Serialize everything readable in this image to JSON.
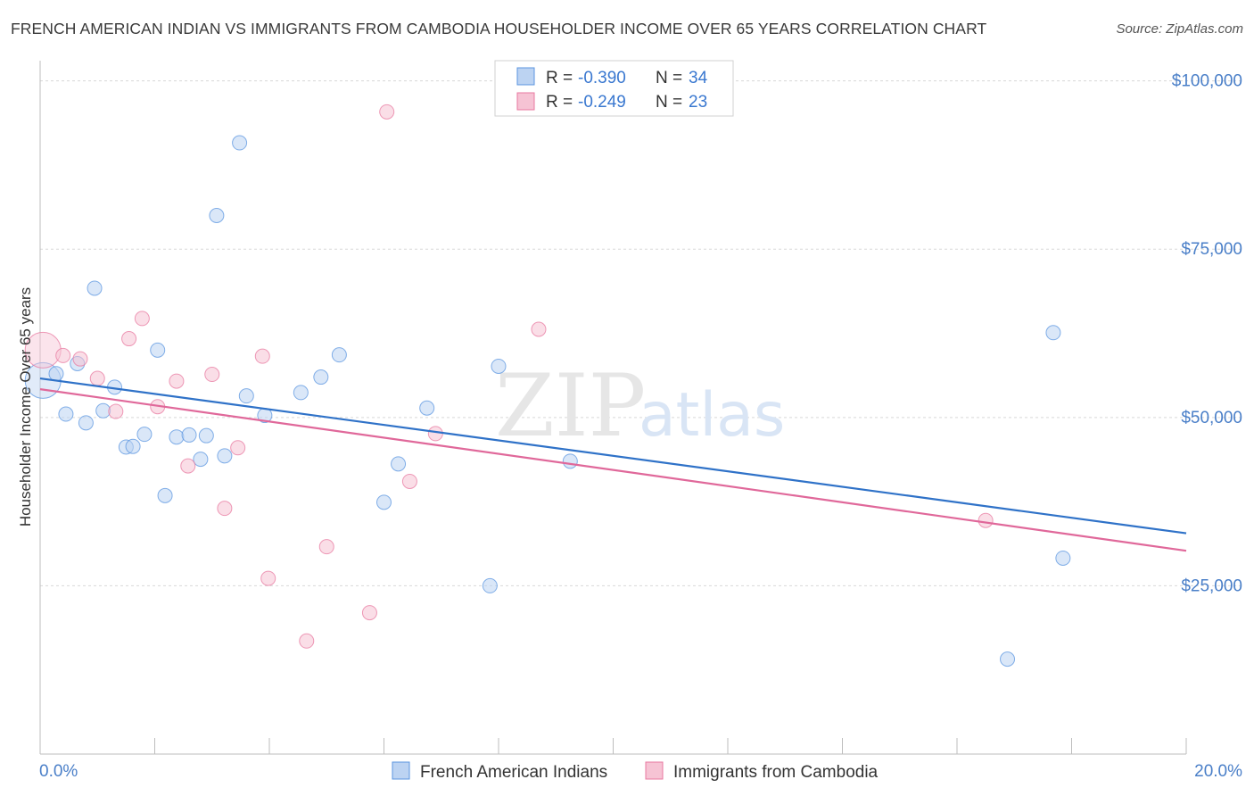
{
  "chart_data": {
    "type": "scatter",
    "title": "FRENCH AMERICAN INDIAN VS IMMIGRANTS FROM CAMBODIA HOUSEHOLDER INCOME OVER 65 YEARS CORRELATION CHART",
    "source": "Source: ZipAtlas.com",
    "ylabel": "Householder Income Over 65 years",
    "xlabel": "",
    "xlim": [
      0,
      20
    ],
    "ylim": [
      0,
      103000
    ],
    "x_tick_labels": [
      "0.0%",
      "20.0%"
    ],
    "y_ticks": [
      25000,
      50000,
      75000,
      100000
    ],
    "y_tick_labels": [
      "$25,000",
      "$50,000",
      "$75,000",
      "$100,000"
    ],
    "watermark": {
      "zip": "ZIP",
      "atlas": "atlas"
    },
    "legend": {
      "r_label": "R =",
      "n_label": "N =",
      "entries": [
        {
          "r": "-0.390",
          "n": "34",
          "color": "#5b96e0"
        },
        {
          "r": "-0.249",
          "n": "23",
          "color": "#e87aa0"
        }
      ]
    },
    "series": [
      {
        "name": "French American Indians",
        "color": "#5b96e0",
        "fill": "#bcd3f2",
        "trend": {
          "x": [
            0,
            20
          ],
          "y": [
            55800,
            32800
          ]
        },
        "points": [
          {
            "x": 0.05,
            "y": 55500,
            "big": true
          },
          {
            "x": 0.28,
            "y": 56500
          },
          {
            "x": 0.45,
            "y": 50500
          },
          {
            "x": 0.65,
            "y": 58000
          },
          {
            "x": 0.8,
            "y": 49200
          },
          {
            "x": 0.95,
            "y": 69200
          },
          {
            "x": 1.1,
            "y": 51000
          },
          {
            "x": 1.3,
            "y": 54500
          },
          {
            "x": 1.5,
            "y": 45600
          },
          {
            "x": 1.62,
            "y": 45700
          },
          {
            "x": 1.82,
            "y": 47500
          },
          {
            "x": 2.05,
            "y": 60000
          },
          {
            "x": 2.18,
            "y": 38400
          },
          {
            "x": 2.38,
            "y": 47100
          },
          {
            "x": 2.6,
            "y": 47400
          },
          {
            "x": 2.8,
            "y": 43800
          },
          {
            "x": 2.9,
            "y": 47300
          },
          {
            "x": 3.08,
            "y": 80000
          },
          {
            "x": 3.22,
            "y": 44300
          },
          {
            "x": 3.48,
            "y": 90800
          },
          {
            "x": 3.6,
            "y": 53200
          },
          {
            "x": 3.92,
            "y": 50300
          },
          {
            "x": 4.55,
            "y": 53700
          },
          {
            "x": 4.9,
            "y": 56000
          },
          {
            "x": 5.22,
            "y": 59300
          },
          {
            "x": 6.0,
            "y": 37400
          },
          {
            "x": 6.25,
            "y": 43100
          },
          {
            "x": 6.75,
            "y": 51400
          },
          {
            "x": 7.85,
            "y": 25000
          },
          {
            "x": 8.0,
            "y": 57600
          },
          {
            "x": 9.25,
            "y": 43500
          },
          {
            "x": 16.88,
            "y": 14100
          },
          {
            "x": 17.68,
            "y": 62600
          },
          {
            "x": 17.85,
            "y": 29100
          }
        ]
      },
      {
        "name": "Immigrants from Cambodia",
        "color": "#e87aa0",
        "fill": "#f6c3d4",
        "trend": {
          "x": [
            0,
            20
          ],
          "y": [
            54200,
            30200
          ]
        },
        "points": [
          {
            "x": 0.05,
            "y": 60000,
            "big": true
          },
          {
            "x": 0.4,
            "y": 59200
          },
          {
            "x": 0.7,
            "y": 58700
          },
          {
            "x": 1.0,
            "y": 55800
          },
          {
            "x": 1.32,
            "y": 50900
          },
          {
            "x": 1.55,
            "y": 61700
          },
          {
            "x": 1.78,
            "y": 64700
          },
          {
            "x": 2.05,
            "y": 51600
          },
          {
            "x": 2.38,
            "y": 55400
          },
          {
            "x": 2.58,
            "y": 42800
          },
          {
            "x": 3.0,
            "y": 56400
          },
          {
            "x": 3.22,
            "y": 36500
          },
          {
            "x": 3.45,
            "y": 45500
          },
          {
            "x": 3.88,
            "y": 59100
          },
          {
            "x": 3.98,
            "y": 26100
          },
          {
            "x": 4.65,
            "y": 16800
          },
          {
            "x": 5.0,
            "y": 30800
          },
          {
            "x": 5.75,
            "y": 21000
          },
          {
            "x": 6.05,
            "y": 95400
          },
          {
            "x": 6.45,
            "y": 40500
          },
          {
            "x": 6.9,
            "y": 47600
          },
          {
            "x": 8.7,
            "y": 63100
          },
          {
            "x": 16.5,
            "y": 34700
          }
        ]
      }
    ]
  }
}
